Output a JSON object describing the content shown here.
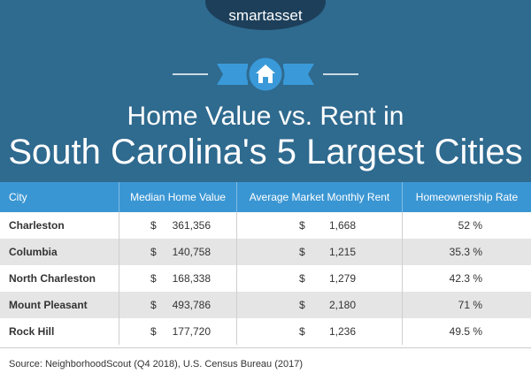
{
  "header": {
    "brand": "smartasset",
    "title_line1": "Home Value vs. Rent in",
    "title_line2": "South Carolina's 5 Largest Cities"
  },
  "table": {
    "columns": [
      "City",
      "Median Home Value",
      "Average Market Monthly Rent",
      "Homeownership Rate"
    ],
    "rows": [
      {
        "city": "Charleston",
        "home_value": {
          "currency": "$",
          "amount": "361,356"
        },
        "rent": {
          "currency": "$",
          "amount": "1,668"
        },
        "rate": "52 %"
      },
      {
        "city": "Columbia",
        "home_value": {
          "currency": "$",
          "amount": "140,758"
        },
        "rent": {
          "currency": "$",
          "amount": "1,215"
        },
        "rate": "35.3 %"
      },
      {
        "city": "North Charleston",
        "home_value": {
          "currency": "$",
          "amount": "168,338"
        },
        "rent": {
          "currency": "$",
          "amount": "1,279"
        },
        "rate": "42.3 %"
      },
      {
        "city": "Mount Pleasant",
        "home_value": {
          "currency": "$",
          "amount": "493,786"
        },
        "rent": {
          "currency": "$",
          "amount": "2,180"
        },
        "rate": "71 %"
      },
      {
        "city": "Rock Hill",
        "home_value": {
          "currency": "$",
          "amount": "177,720"
        },
        "rent": {
          "currency": "$",
          "amount": "1,236"
        },
        "rate": "49.5 %"
      }
    ]
  },
  "source": "Source: NeighborhoodScout (Q4 2018), U.S. Census Bureau (2017)"
}
